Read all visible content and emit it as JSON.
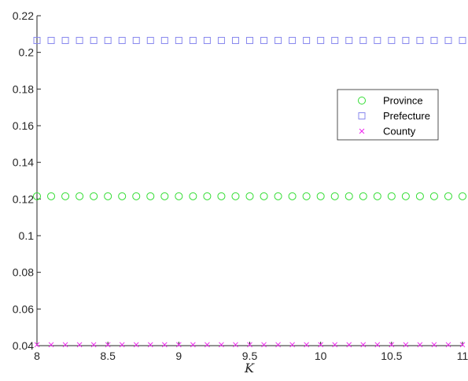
{
  "chart_data": {
    "type": "scatter",
    "title": "",
    "xlabel": "K",
    "ylabel": "",
    "xlim": [
      8,
      11
    ],
    "ylim": [
      0.04,
      0.22
    ],
    "xticks": [
      8,
      8.5,
      9,
      9.5,
      10,
      10.5,
      11
    ],
    "xtick_labels": [
      "8",
      "8.5",
      "9",
      "9.5",
      "10",
      "10.5",
      "11"
    ],
    "yticks": [
      0.04,
      0.06,
      0.08,
      0.1,
      0.12,
      0.14,
      0.16,
      0.18,
      0.2,
      0.22
    ],
    "ytick_labels": [
      "0.04",
      "0.06",
      "0.08",
      "0.1",
      "0.12",
      "0.14",
      "0.16",
      "0.18",
      "0.2",
      "0.22"
    ],
    "x": [
      8,
      8.1,
      8.2,
      8.3,
      8.4,
      8.5,
      8.6,
      8.7,
      8.8,
      8.9,
      9,
      9.1,
      9.2,
      9.3,
      9.4,
      9.5,
      9.6,
      9.7,
      9.8,
      9.9,
      10,
      10.1,
      10.2,
      10.3,
      10.4,
      10.5,
      10.6,
      10.7,
      10.8,
      10.9,
      11
    ],
    "series": [
      {
        "name": "Province",
        "marker": "circle",
        "color": "#33dd33",
        "y_constant": 0.1215
      },
      {
        "name": "Prefecture",
        "marker": "square",
        "color": "#8888ee",
        "y_constant": 0.2065
      },
      {
        "name": "County",
        "marker": "x",
        "color": "#ee22ee",
        "y_constant": 0.0405
      }
    ],
    "grid": false,
    "legend": "center-right"
  }
}
